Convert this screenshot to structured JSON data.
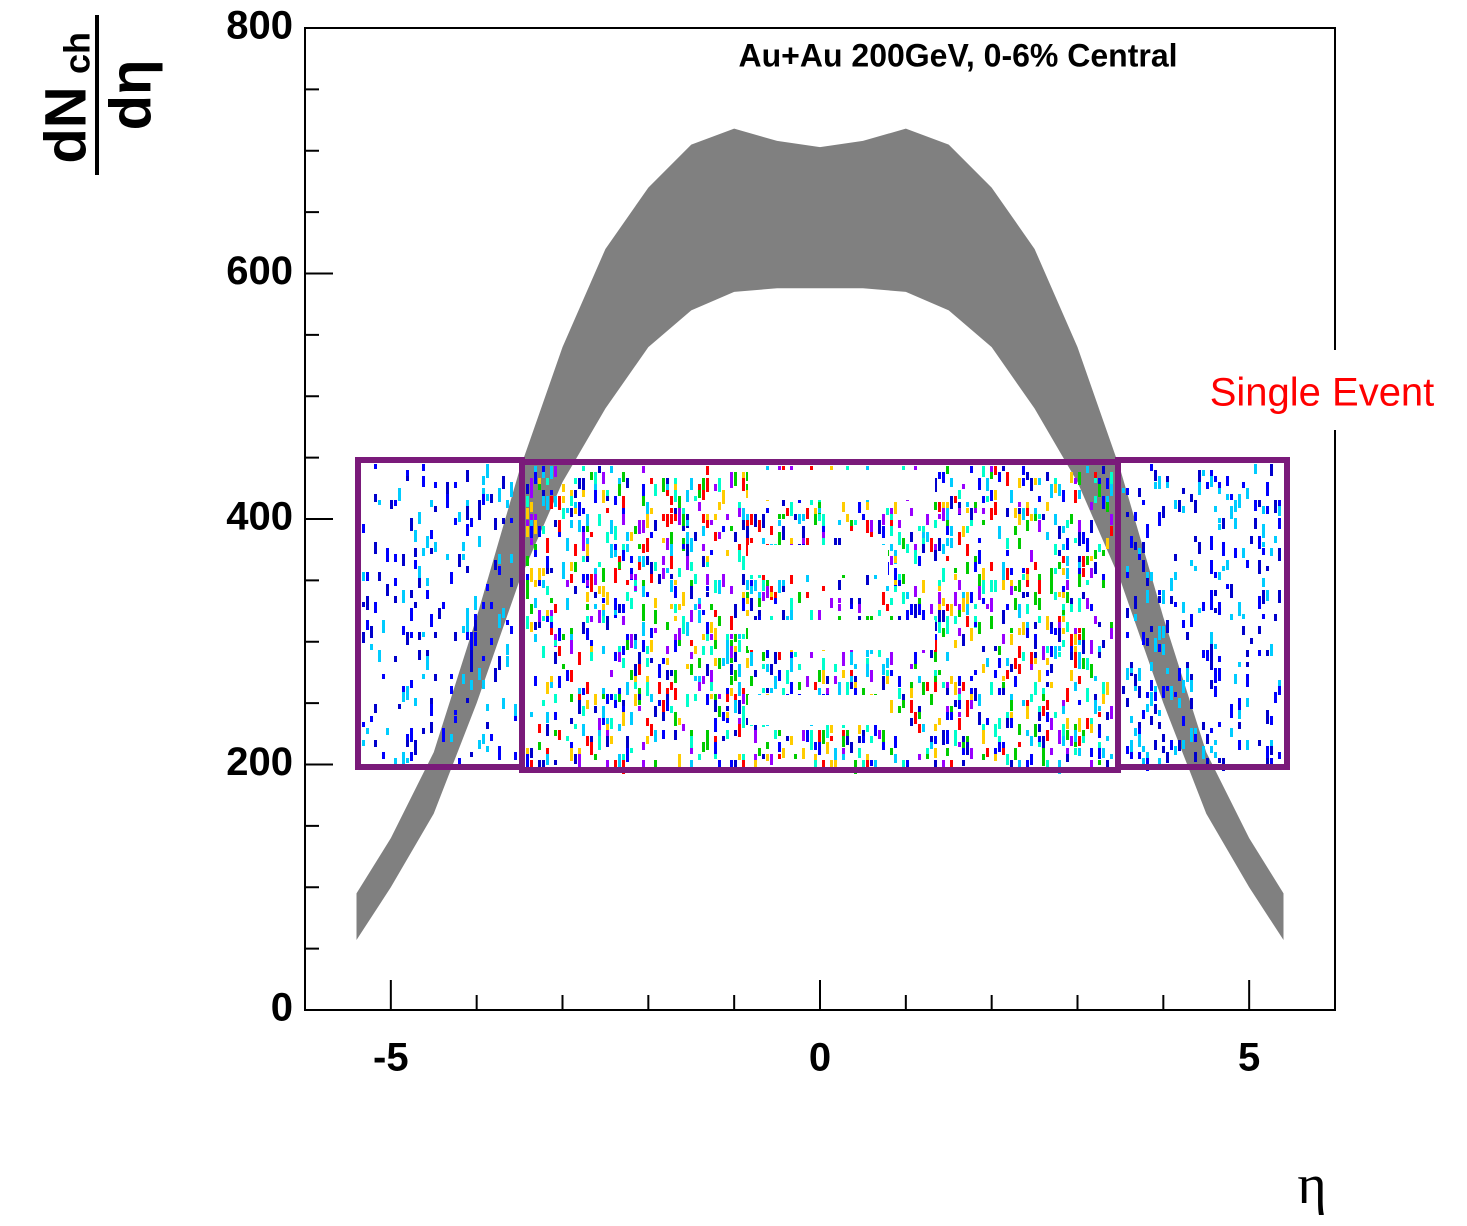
{
  "chart_data": {
    "type": "band",
    "title": "Au+Au 200GeV, 0-6% Central",
    "ylabel": {
      "main": "dN",
      "subscript": "ch",
      "denominator": "dη"
    },
    "xlabel": "η",
    "annotation": "Single Event",
    "color": "#808080",
    "x": [
      -5.4,
      -5,
      -4.5,
      -4,
      -3.5,
      -3,
      -2.5,
      -2,
      -1.5,
      -1,
      -0.5,
      0,
      0.5,
      1,
      1.5,
      2,
      2.5,
      3,
      3.5,
      4,
      4.5,
      5,
      5.4
    ],
    "upper": [
      95,
      140,
      210,
      320,
      440,
      540,
      620,
      670,
      705,
      718,
      708,
      703,
      708,
      718,
      705,
      670,
      620,
      540,
      440,
      320,
      210,
      140,
      95
    ],
    "lower": [
      57,
      100,
      160,
      250,
      350,
      430,
      490,
      540,
      570,
      585,
      588,
      588,
      588,
      585,
      570,
      540,
      490,
      430,
      350,
      250,
      160,
      100,
      57
    ],
    "xlim": [
      -6,
      6
    ],
    "ylim": [
      0,
      800
    ],
    "xticks": [
      -5,
      0,
      5
    ],
    "yticks": [
      0,
      200,
      400,
      600,
      800
    ],
    "xminor_ticks": [
      -4,
      -3,
      -2,
      -1,
      1,
      2,
      3,
      4
    ],
    "yminor_ticks": [
      50,
      100,
      150,
      250,
      300,
      350,
      450,
      500,
      550,
      650,
      700,
      750
    ]
  }
}
